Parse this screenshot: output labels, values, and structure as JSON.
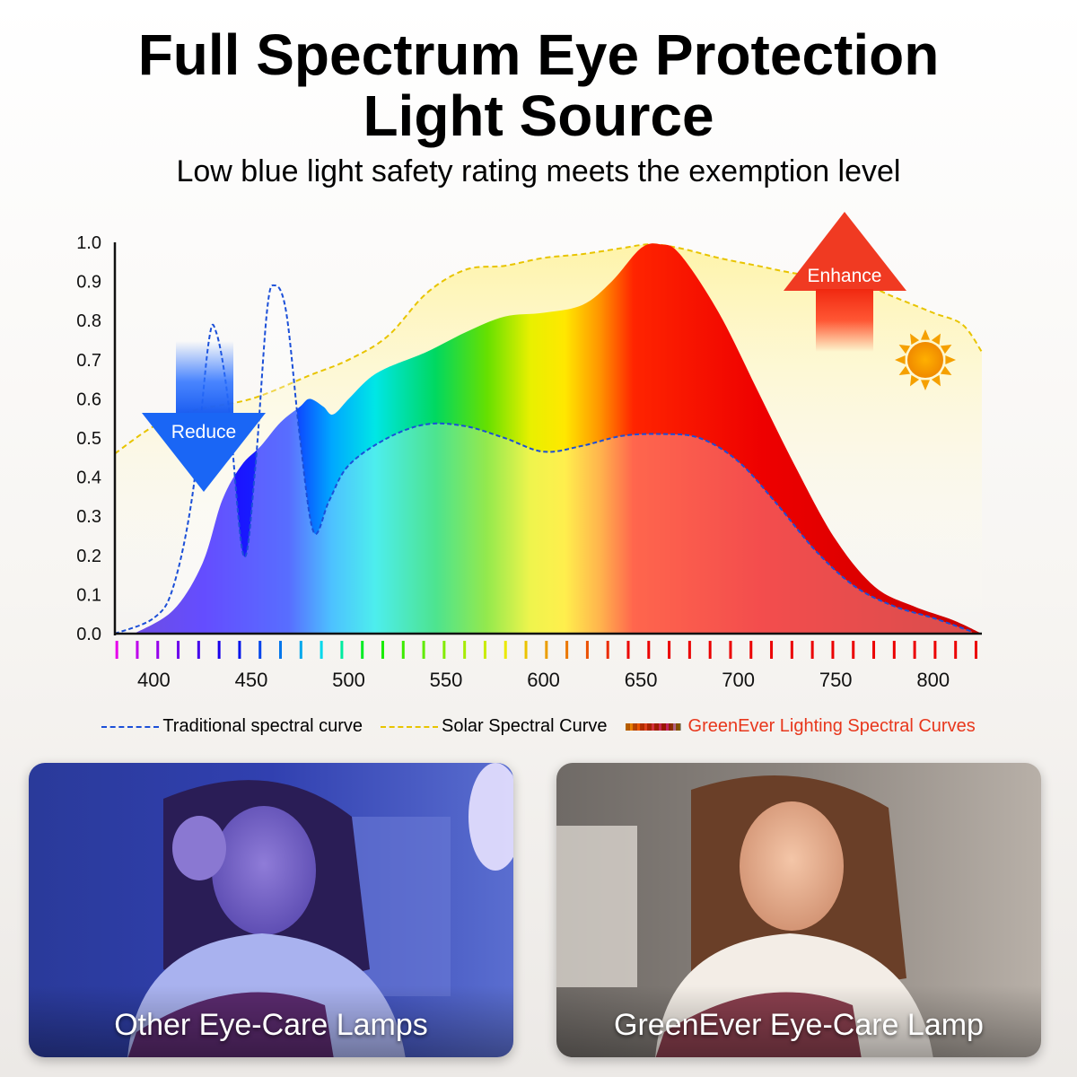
{
  "header": {
    "title_line1": "Full Spectrum Eye Protection",
    "title_line2": "Light Source",
    "subtitle": "Low blue light safety rating meets the exemption level"
  },
  "chart_data": {
    "type": "area",
    "xlim": [
      380,
      825
    ],
    "ylim": [
      0,
      1.0
    ],
    "x_ticks": [
      400,
      450,
      500,
      550,
      600,
      650,
      700,
      750,
      800
    ],
    "y_ticks": [
      "0.0",
      "0.1",
      "0.2",
      "0.3",
      "0.4",
      "0.5",
      "0.6",
      "0.7",
      "0.8",
      "0.9",
      "1.0"
    ],
    "series": [
      {
        "name": "Traditional spectral curve",
        "style": "dashed",
        "color": "#1b4fd8",
        "points": [
          [
            380,
            0.0
          ],
          [
            400,
            0.04
          ],
          [
            410,
            0.12
          ],
          [
            420,
            0.36
          ],
          [
            428,
            0.74
          ],
          [
            432,
            0.77
          ],
          [
            438,
            0.6
          ],
          [
            446,
            0.2
          ],
          [
            452,
            0.42
          ],
          [
            458,
            0.82
          ],
          [
            462,
            0.89
          ],
          [
            468,
            0.82
          ],
          [
            475,
            0.5
          ],
          [
            482,
            0.26
          ],
          [
            490,
            0.34
          ],
          [
            500,
            0.43
          ],
          [
            520,
            0.5
          ],
          [
            540,
            0.535
          ],
          [
            560,
            0.53
          ],
          [
            580,
            0.5
          ],
          [
            600,
            0.465
          ],
          [
            620,
            0.48
          ],
          [
            640,
            0.505
          ],
          [
            660,
            0.51
          ],
          [
            680,
            0.5
          ],
          [
            700,
            0.44
          ],
          [
            720,
            0.33
          ],
          [
            740,
            0.21
          ],
          [
            760,
            0.12
          ],
          [
            780,
            0.07
          ],
          [
            800,
            0.04
          ],
          [
            820,
            0.005
          ]
        ]
      },
      {
        "name": "Solar Spectral Curve",
        "style": "dashed",
        "color": "#e8c400",
        "points": [
          [
            380,
            0.46
          ],
          [
            400,
            0.53
          ],
          [
            420,
            0.57
          ],
          [
            450,
            0.6
          ],
          [
            480,
            0.66
          ],
          [
            500,
            0.7
          ],
          [
            520,
            0.76
          ],
          [
            540,
            0.87
          ],
          [
            560,
            0.93
          ],
          [
            580,
            0.94
          ],
          [
            600,
            0.96
          ],
          [
            620,
            0.97
          ],
          [
            640,
            0.985
          ],
          [
            655,
            0.995
          ],
          [
            670,
            0.985
          ],
          [
            690,
            0.96
          ],
          [
            710,
            0.94
          ],
          [
            730,
            0.92
          ],
          [
            760,
            0.9
          ],
          [
            780,
            0.86
          ],
          [
            800,
            0.82
          ],
          [
            815,
            0.79
          ],
          [
            825,
            0.72
          ]
        ]
      },
      {
        "name": "GreenEver Lighting Spectral Curves",
        "style": "filled",
        "color": "#e8371c",
        "points": [
          [
            390,
            0.0
          ],
          [
            410,
            0.06
          ],
          [
            425,
            0.18
          ],
          [
            435,
            0.34
          ],
          [
            445,
            0.43
          ],
          [
            455,
            0.48
          ],
          [
            465,
            0.54
          ],
          [
            475,
            0.58
          ],
          [
            480,
            0.6
          ],
          [
            487,
            0.58
          ],
          [
            492,
            0.56
          ],
          [
            500,
            0.6
          ],
          [
            510,
            0.65
          ],
          [
            520,
            0.68
          ],
          [
            540,
            0.72
          ],
          [
            560,
            0.77
          ],
          [
            580,
            0.81
          ],
          [
            600,
            0.82
          ],
          [
            620,
            0.84
          ],
          [
            635,
            0.9
          ],
          [
            650,
            0.985
          ],
          [
            660,
            0.995
          ],
          [
            670,
            0.97
          ],
          [
            690,
            0.82
          ],
          [
            710,
            0.62
          ],
          [
            730,
            0.42
          ],
          [
            750,
            0.24
          ],
          [
            770,
            0.12
          ],
          [
            790,
            0.07
          ],
          [
            810,
            0.035
          ],
          [
            825,
            0.0
          ]
        ]
      }
    ],
    "annotations": [
      "Reduce",
      "Enhance"
    ],
    "legend_position": "bottom"
  },
  "legend": {
    "traditional": "Traditional spectral curve",
    "solar": "Solar Spectral Curve",
    "greenever": "GreenEver Lighting Spectral Curves"
  },
  "photos": {
    "left_caption": "Other Eye-Care Lamps",
    "right_caption": "GreenEver Eye-Care Lamp"
  },
  "colors": {
    "blue_curve": "#1b4fd8",
    "solar_curve": "#e8c400",
    "legend_accent": "#e8371c",
    "sun": "#f5a000"
  }
}
